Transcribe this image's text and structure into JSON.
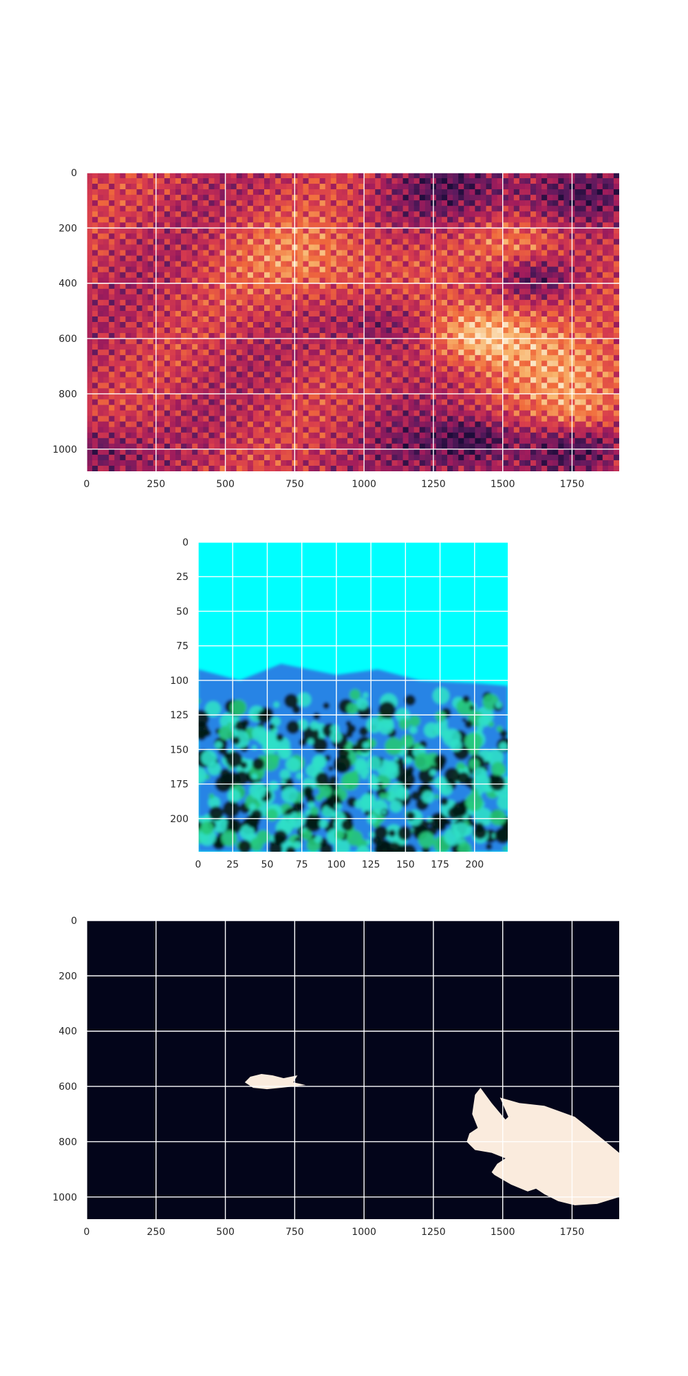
{
  "figure": {
    "background": "#ffffff",
    "grid_color": "#ffffff",
    "tick_color": "#262626"
  },
  "chart_data": [
    {
      "type": "heatmap",
      "name": "spectral-feature-map",
      "title": "",
      "xlabel": "",
      "ylabel": "",
      "xlim": [
        0,
        1920
      ],
      "ylim": [
        1080,
        0
      ],
      "x_ticks": [
        0,
        250,
        500,
        750,
        1000,
        1250,
        1500,
        1750
      ],
      "y_ticks": [
        0,
        200,
        400,
        600,
        800,
        1000
      ],
      "grid": true,
      "colormap": [
        "#1e0c3a",
        "#5a1a5e",
        "#a01c5c",
        "#d63a4e",
        "#f06a3c",
        "#f8b36a",
        "#fbe6c4"
      ],
      "base_color": "#b51e57"
    },
    {
      "type": "image",
      "name": "underwater-coral-reef",
      "title": "",
      "xlabel": "",
      "ylabel": "",
      "xlim": [
        0,
        224
      ],
      "ylim": [
        224,
        0
      ],
      "x_ticks": [
        0,
        25,
        50,
        75,
        100,
        125,
        150,
        175,
        200
      ],
      "y_ticks": [
        0,
        25,
        50,
        75,
        100,
        125,
        150,
        175,
        200
      ],
      "grid": true,
      "colors": {
        "water": "#00ffff",
        "deep_water": "#2f6fe0",
        "coral_light": "#30e0c8",
        "coral_dark": "#041a14",
        "algae": "#28c878"
      }
    },
    {
      "type": "image",
      "name": "segmentation-mask",
      "title": "",
      "xlabel": "",
      "ylabel": "",
      "xlim": [
        0,
        1920
      ],
      "ylim": [
        1080,
        0
      ],
      "x_ticks": [
        0,
        250,
        500,
        750,
        1000,
        1250,
        1500,
        1750
      ],
      "y_ticks": [
        0,
        200,
        400,
        600,
        800,
        1000
      ],
      "grid": true,
      "colors": {
        "background": "#03051a",
        "mask": "#faebdd"
      },
      "regions": [
        {
          "label": "small-fish",
          "polygon": [
            [
              570,
              585
            ],
            [
              590,
              565
            ],
            [
              630,
              555
            ],
            [
              670,
              560
            ],
            [
              710,
              570
            ],
            [
              760,
              560
            ],
            [
              745,
              585
            ],
            [
              790,
              595
            ],
            [
              745,
              600
            ],
            [
              700,
              605
            ],
            [
              650,
              610
            ],
            [
              600,
              605
            ]
          ]
        },
        {
          "label": "large-fish",
          "polygon": [
            [
              1420,
              605
            ],
            [
              1460,
              660
            ],
            [
              1510,
              720
            ],
            [
              1520,
              710
            ],
            [
              1490,
              640
            ],
            [
              1560,
              660
            ],
            [
              1650,
              670
            ],
            [
              1760,
              710
            ],
            [
              1860,
              790
            ],
            [
              1920,
              840
            ],
            [
              1920,
              1000
            ],
            [
              1840,
              1025
            ],
            [
              1760,
              1030
            ],
            [
              1700,
              1015
            ],
            [
              1650,
              990
            ],
            [
              1620,
              970
            ],
            [
              1590,
              980
            ],
            [
              1530,
              955
            ],
            [
              1470,
              920
            ],
            [
              1460,
              910
            ],
            [
              1480,
              880
            ],
            [
              1510,
              860
            ],
            [
              1460,
              840
            ],
            [
              1400,
              830
            ],
            [
              1370,
              800
            ],
            [
              1380,
              770
            ],
            [
              1410,
              750
            ],
            [
              1390,
              700
            ],
            [
              1400,
              630
            ]
          ]
        }
      ]
    }
  ]
}
